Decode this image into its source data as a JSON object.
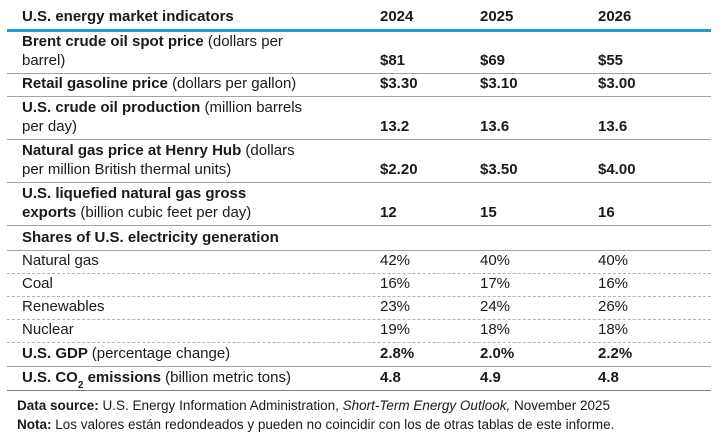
{
  "table": {
    "header": {
      "label": "U.S. energy market indicators",
      "years": [
        "2024",
        "2025",
        "2026"
      ]
    },
    "rows": {
      "brent": {
        "bold": "Brent crude oil spot price ",
        "normal": "(dollars per\nbarrel)",
        "values": [
          "$81",
          "$69",
          "$55"
        ]
      },
      "gasoline": {
        "bold": "Retail gasoline price ",
        "normal": "(dollars per gallon)",
        "values": [
          "$3.30",
          "$3.10",
          "$3.00"
        ]
      },
      "crude_production": {
        "bold": "U.S. crude oil production ",
        "normal": "(million barrels\nper day)",
        "values": [
          "13.2",
          "13.6",
          "13.6"
        ]
      },
      "henry_hub": {
        "bold": "Natural gas price at Henry Hub ",
        "normal": "(dollars\nper million British thermal units)",
        "values": [
          "$2.20",
          "$3.50",
          "$4.00"
        ]
      },
      "lng_exports": {
        "bold": "U.S. liquefied natural gas gross\nexports ",
        "normal": "(billion cubic feet per day)",
        "values": [
          "12",
          "15",
          "16"
        ]
      },
      "electricity_section": {
        "bold": "Shares of U.S. electricity generation"
      },
      "natural_gas": {
        "label": "Natural gas",
        "values": [
          "42%",
          "40%",
          "40%"
        ]
      },
      "coal": {
        "label": "Coal",
        "values": [
          "16%",
          "17%",
          "16%"
        ]
      },
      "renewables": {
        "label": "Renewables",
        "values": [
          "23%",
          "24%",
          "26%"
        ]
      },
      "nuclear": {
        "label": "Nuclear",
        "values": [
          "19%",
          "18%",
          "18%"
        ]
      },
      "gdp": {
        "bold": "U.S. GDP ",
        "normal": "(percentage change)",
        "values": [
          "2.8%",
          "2.0%",
          "2.2%"
        ]
      },
      "co2": {
        "bold_pre": "U.S. CO",
        "sub": "2",
        "bold_post": " emissions ",
        "normal": "(billion metric tons)",
        "values": [
          "4.8",
          "4.9",
          "4.8"
        ]
      }
    }
  },
  "footer": {
    "source_label": "Data source:",
    "source_before_italic": " U.S. Energy Information Administration, ",
    "source_italic": "Short-Term Energy Outlook,",
    "source_after_italic": " November 2025",
    "note_label": "Nota:",
    "note_text": " Los valores están redondeados y pueden no coincidir con los de otras tablas de este informe."
  },
  "colors": {
    "accent_blue": "#1e9bd7",
    "separator_gray": "#a3a3a3",
    "dashed_gray": "#b3b3b3",
    "bottom_rule": "#7f7f7f",
    "text": "#1a1a1a"
  }
}
